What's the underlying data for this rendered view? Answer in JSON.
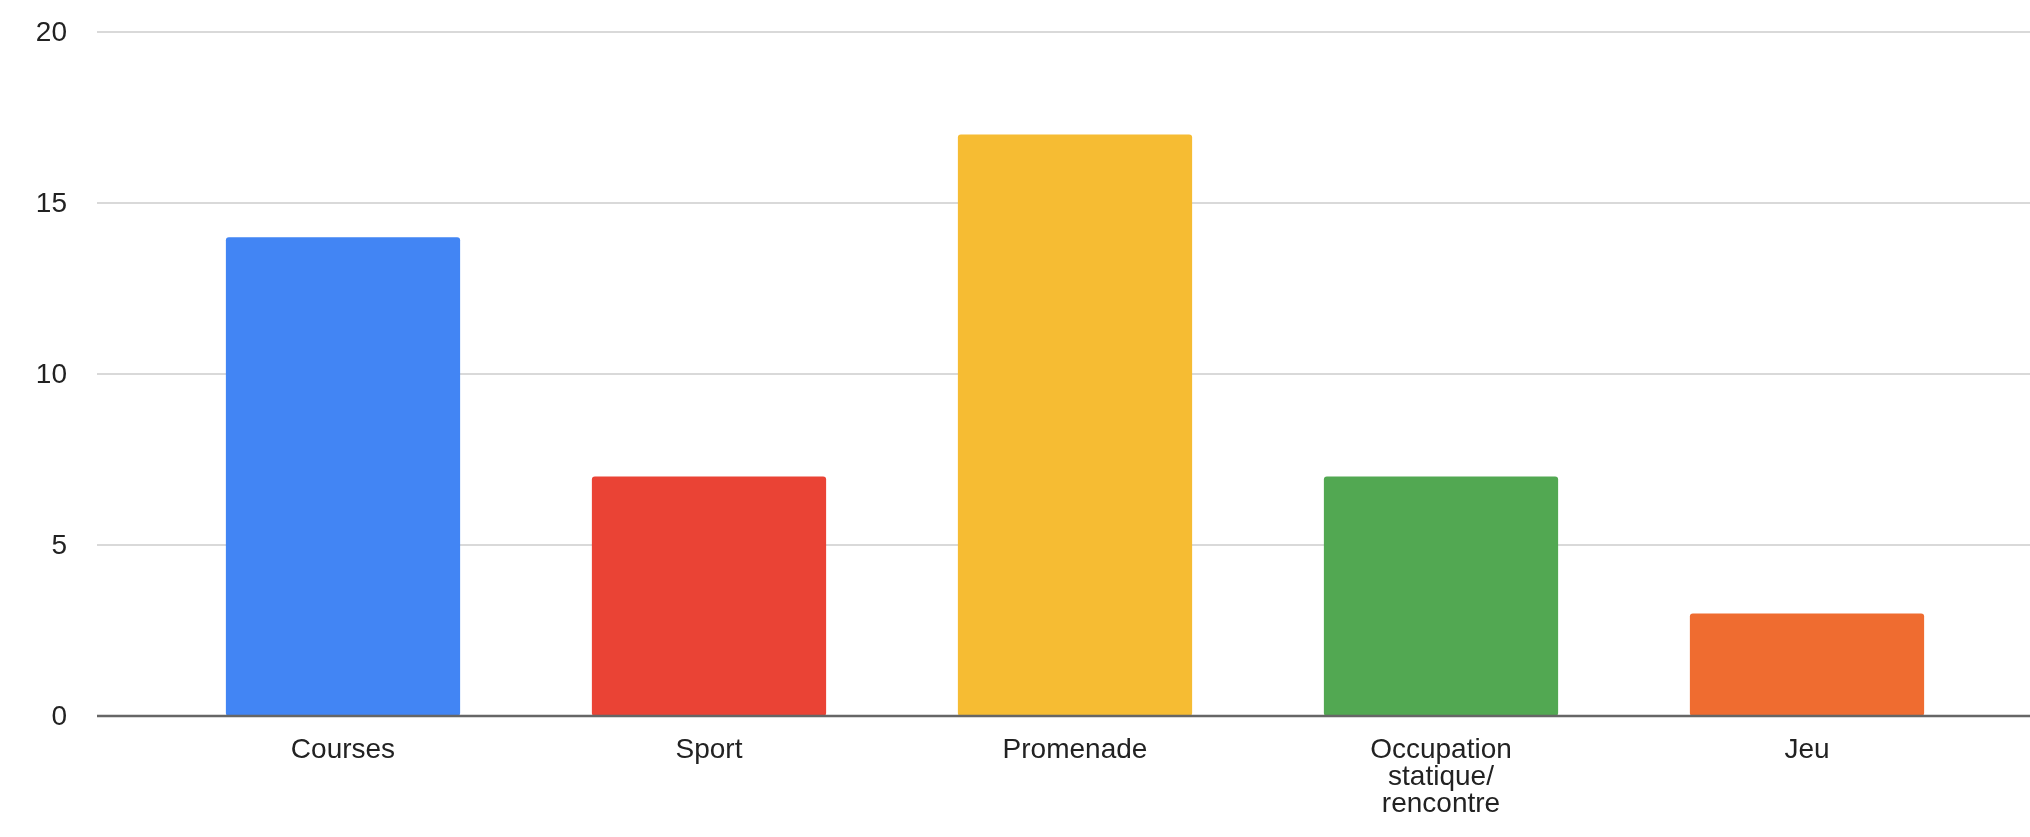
{
  "chart_data": {
    "type": "bar",
    "categories": [
      "Courses",
      "Sport",
      "Promenade",
      "Occupation statique/ rencontre",
      "Jeu"
    ],
    "values": [
      14,
      7,
      17,
      7,
      3
    ],
    "colors": [
      "#4285f4",
      "#ea4335",
      "#f6bc33",
      "#52a852",
      "#ef6c30"
    ],
    "ylim": [
      0,
      20
    ],
    "yticks": [
      0,
      5,
      10,
      15,
      20
    ],
    "grid": "y"
  }
}
